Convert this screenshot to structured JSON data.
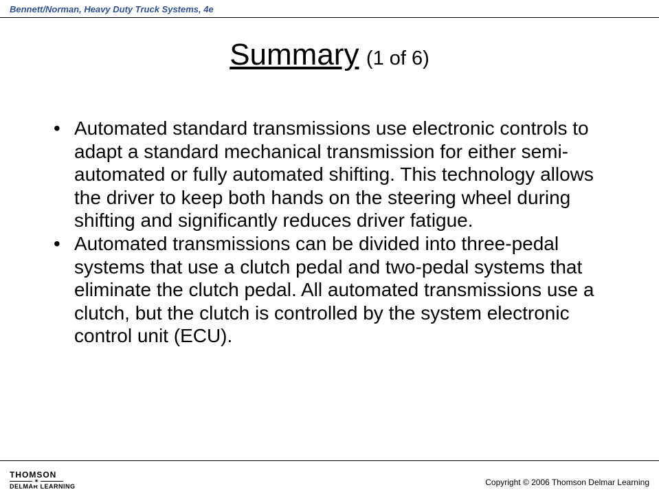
{
  "header": {
    "book_title": "Bennett/Norman, Heavy Duty Truck Systems, 4e",
    "text_color": "#2d4f9e"
  },
  "slide": {
    "title_main": "Summary",
    "title_part": "(1 of 6)",
    "title_fontsize_main": 44,
    "title_fontsize_part": 29,
    "bullets": [
      "Automated standard transmissions use electronic controls to adapt a standard mechanical transmission for either semi-automated or fully automated shifting. This technology allows the driver to keep both hands on the steering wheel during shifting and significantly reduces driver fatigue.",
      "Automated transmissions can be divided into three-pedal systems that use a clutch pedal and two-pedal systems that eliminate the clutch pedal. All automated transmissions use a clutch, but the clutch is controlled by the system electronic control unit (ECU)."
    ],
    "bullet_fontsize": 28,
    "text_color": "#000000",
    "background_color": "#ffffff"
  },
  "footer": {
    "publisher_top": "THOMSON",
    "publisher_bottom": "DELMAR LEARNING",
    "copyright": "Copyright © 2006 Thomson Delmar Learning"
  }
}
